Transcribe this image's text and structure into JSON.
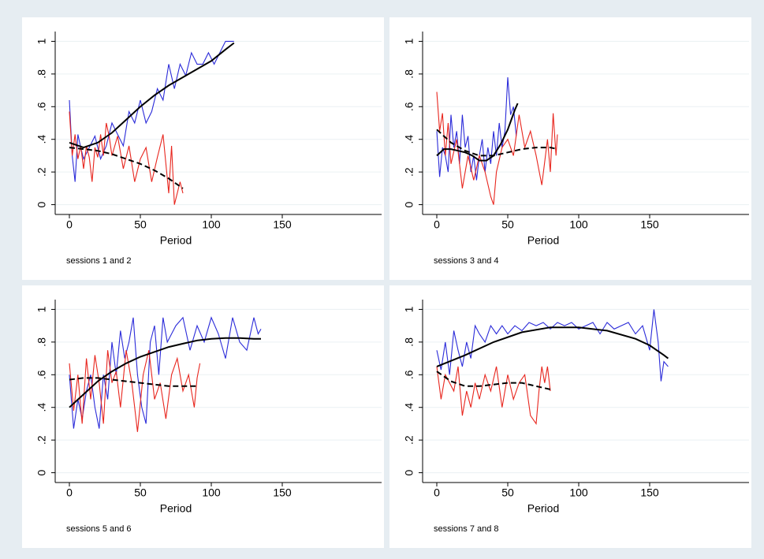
{
  "chart_data": [
    {
      "type": "line",
      "x_label": "Period",
      "note": "sessions 1 and 2",
      "xlim": [
        -10,
        220
      ],
      "ylim": [
        -0.06,
        1.06
      ],
      "xticks": [
        0,
        50,
        100,
        150
      ],
      "yticks": [
        0,
        {
          "value": 0.2,
          "label": ".2"
        },
        {
          "value": 0.4,
          "label": ".4"
        },
        {
          "value": 0.6,
          "label": ".6"
        },
        {
          "value": 0.8,
          "label": ".8"
        },
        1
      ],
      "grid": true,
      "series": [
        {
          "color": "#2b2bd9",
          "linestyle": "solid",
          "x": [
            0,
            2,
            4,
            6,
            8,
            10,
            14,
            18,
            22,
            26,
            30,
            34,
            38,
            42,
            46,
            50,
            54,
            58,
            62,
            66,
            70,
            74,
            78,
            82,
            86,
            90,
            94,
            98,
            102,
            106,
            110,
            114,
            116
          ],
          "values": [
            0.64,
            0.3,
            0.14,
            0.43,
            0.35,
            0.28,
            0.35,
            0.42,
            0.28,
            0.36,
            0.5,
            0.43,
            0.36,
            0.57,
            0.5,
            0.64,
            0.5,
            0.57,
            0.71,
            0.64,
            0.86,
            0.71,
            0.86,
            0.79,
            0.93,
            0.86,
            0.86,
            0.93,
            0.86,
            0.93,
            1,
            1,
            1
          ]
        },
        {
          "color": "#e8261e",
          "linestyle": "solid",
          "x": [
            0,
            2,
            4,
            6,
            8,
            10,
            12,
            14,
            16,
            18,
            20,
            22,
            24,
            26,
            28,
            30,
            34,
            38,
            42,
            46,
            50,
            54,
            58,
            62,
            66,
            70,
            72,
            74,
            76,
            78,
            80
          ],
          "values": [
            0.57,
            0.3,
            0.43,
            0.28,
            0.36,
            0.22,
            0.36,
            0.29,
            0.14,
            0.35,
            0.29,
            0.43,
            0.3,
            0.5,
            0.42,
            0.3,
            0.42,
            0.22,
            0.36,
            0.14,
            0.28,
            0.35,
            0.14,
            0.29,
            0.43,
            0.07,
            0.36,
            0,
            0.07,
            0.14,
            0.07
          ]
        },
        {
          "color": "#000000",
          "linestyle": "solid",
          "x": [
            0,
            10,
            20,
            30,
            40,
            50,
            60,
            70,
            80,
            90,
            100,
            110,
            116
          ],
          "values": [
            0.38,
            0.35,
            0.38,
            0.44,
            0.52,
            0.6,
            0.67,
            0.73,
            0.78,
            0.83,
            0.88,
            0.95,
            0.99
          ]
        },
        {
          "color": "#000000",
          "linestyle": "dashed",
          "x": [
            0,
            10,
            20,
            30,
            40,
            50,
            60,
            70,
            80
          ],
          "values": [
            0.35,
            0.34,
            0.33,
            0.31,
            0.28,
            0.25,
            0.21,
            0.16,
            0.1
          ]
        }
      ]
    },
    {
      "type": "line",
      "x_label": "Period",
      "note": "sessions 3 and 4",
      "xlim": [
        -10,
        220
      ],
      "ylim": [
        -0.06,
        1.06
      ],
      "xticks": [
        0,
        50,
        100,
        150
      ],
      "yticks": [
        0,
        {
          "value": 0.2,
          "label": ".2"
        },
        {
          "value": 0.4,
          "label": ".4"
        },
        {
          "value": 0.6,
          "label": ".6"
        },
        {
          "value": 0.8,
          "label": ".8"
        },
        1
      ],
      "grid": true,
      "series": [
        {
          "color": "#2b2bd9",
          "linestyle": "solid",
          "x": [
            0,
            2,
            4,
            6,
            8,
            10,
            12,
            14,
            16,
            18,
            20,
            22,
            24,
            26,
            28,
            30,
            32,
            34,
            36,
            38,
            40,
            42,
            44,
            46,
            48,
            50,
            52,
            54,
            56
          ],
          "values": [
            0.45,
            0.17,
            0.35,
            0.3,
            0.2,
            0.55,
            0.35,
            0.45,
            0.25,
            0.55,
            0.35,
            0.42,
            0.2,
            0.3,
            0.15,
            0.3,
            0.4,
            0.2,
            0.35,
            0.25,
            0.45,
            0.3,
            0.5,
            0.35,
            0.45,
            0.78,
            0.55,
            0.6,
            0.42
          ]
        },
        {
          "color": "#e8261e",
          "linestyle": "solid",
          "x": [
            0,
            2,
            4,
            6,
            8,
            10,
            14,
            18,
            22,
            26,
            30,
            34,
            38,
            40,
            42,
            46,
            50,
            54,
            58,
            62,
            66,
            70,
            74,
            78,
            80,
            82,
            84,
            85
          ],
          "values": [
            0.69,
            0.45,
            0.56,
            0.3,
            0.5,
            0.25,
            0.4,
            0.1,
            0.3,
            0.15,
            0.3,
            0.2,
            0.05,
            0,
            0.2,
            0.35,
            0.4,
            0.3,
            0.55,
            0.35,
            0.45,
            0.3,
            0.12,
            0.4,
            0.2,
            0.56,
            0.3,
            0.43
          ]
        },
        {
          "color": "#000000",
          "linestyle": "solid",
          "x": [
            0,
            5,
            10,
            15,
            20,
            25,
            30,
            35,
            40,
            45,
            50,
            55,
            57
          ],
          "values": [
            0.3,
            0.34,
            0.34,
            0.33,
            0.32,
            0.3,
            0.27,
            0.27,
            0.3,
            0.37,
            0.46,
            0.58,
            0.62
          ]
        },
        {
          "color": "#000000",
          "linestyle": "dashed",
          "x": [
            0,
            10,
            20,
            30,
            40,
            50,
            60,
            70,
            80,
            85
          ],
          "values": [
            0.46,
            0.38,
            0.33,
            0.3,
            0.3,
            0.32,
            0.34,
            0.35,
            0.35,
            0.34
          ]
        }
      ]
    },
    {
      "type": "line",
      "x_label": "Period",
      "note": "sessions 5 and 6",
      "xlim": [
        -10,
        220
      ],
      "ylim": [
        -0.06,
        1.06
      ],
      "xticks": [
        0,
        50,
        100,
        150
      ],
      "yticks": [
        0,
        {
          "value": 0.2,
          "label": ".2"
        },
        {
          "value": 0.4,
          "label": ".4"
        },
        {
          "value": 0.6,
          "label": ".6"
        },
        {
          "value": 0.8,
          "label": ".8"
        },
        1
      ],
      "grid": true,
      "series": [
        {
          "color": "#2b2bd9",
          "linestyle": "solid",
          "x": [
            0,
            3,
            6,
            9,
            12,
            15,
            18,
            21,
            24,
            27,
            30,
            33,
            36,
            39,
            42,
            45,
            48,
            51,
            54,
            57,
            60,
            63,
            66,
            69,
            72,
            75,
            80,
            85,
            90,
            95,
            100,
            105,
            110,
            115,
            120,
            125,
            130,
            133,
            135
          ],
          "values": [
            0.6,
            0.27,
            0.45,
            0.33,
            0.5,
            0.6,
            0.4,
            0.27,
            0.6,
            0.45,
            0.8,
            0.6,
            0.87,
            0.7,
            0.8,
            0.95,
            0.6,
            0.4,
            0.3,
            0.8,
            0.9,
            0.6,
            0.95,
            0.8,
            0.85,
            0.9,
            0.95,
            0.75,
            0.9,
            0.8,
            0.95,
            0.85,
            0.7,
            0.95,
            0.8,
            0.75,
            0.95,
            0.85,
            0.88
          ]
        },
        {
          "color": "#e8261e",
          "linestyle": "solid",
          "x": [
            0,
            3,
            6,
            9,
            12,
            15,
            18,
            21,
            24,
            27,
            30,
            33,
            36,
            40,
            44,
            48,
            52,
            56,
            60,
            64,
            68,
            72,
            76,
            80,
            84,
            88,
            90,
            92
          ],
          "values": [
            0.67,
            0.38,
            0.6,
            0.3,
            0.7,
            0.45,
            0.72,
            0.55,
            0.3,
            0.75,
            0.55,
            0.62,
            0.4,
            0.75,
            0.55,
            0.25,
            0.6,
            0.75,
            0.45,
            0.55,
            0.33,
            0.6,
            0.7,
            0.5,
            0.6,
            0.4,
            0.58,
            0.67
          ]
        },
        {
          "color": "#000000",
          "linestyle": "solid",
          "x": [
            0,
            10,
            20,
            30,
            40,
            50,
            60,
            70,
            80,
            90,
            100,
            110,
            120,
            130,
            135
          ],
          "values": [
            0.4,
            0.48,
            0.56,
            0.62,
            0.67,
            0.71,
            0.74,
            0.77,
            0.79,
            0.81,
            0.82,
            0.825,
            0.825,
            0.82,
            0.82
          ]
        },
        {
          "color": "#000000",
          "linestyle": "dashed",
          "x": [
            0,
            10,
            20,
            30,
            40,
            50,
            60,
            70,
            80,
            90
          ],
          "values": [
            0.57,
            0.58,
            0.58,
            0.57,
            0.56,
            0.55,
            0.54,
            0.53,
            0.53,
            0.53
          ]
        }
      ]
    },
    {
      "type": "line",
      "x_label": "Period",
      "note": "sessions 7 and 8",
      "xlim": [
        -10,
        220
      ],
      "ylim": [
        -0.06,
        1.06
      ],
      "xticks": [
        0,
        50,
        100,
        150
      ],
      "yticks": [
        0,
        {
          "value": 0.2,
          "label": ".2"
        },
        {
          "value": 0.4,
          "label": ".4"
        },
        {
          "value": 0.6,
          "label": ".6"
        },
        {
          "value": 0.8,
          "label": ".8"
        },
        1
      ],
      "grid": true,
      "series": [
        {
          "color": "#2b2bd9",
          "linestyle": "solid",
          "x": [
            0,
            3,
            6,
            9,
            12,
            15,
            18,
            21,
            24,
            27,
            30,
            34,
            38,
            42,
            46,
            50,
            55,
            60,
            65,
            70,
            75,
            80,
            85,
            90,
            95,
            100,
            105,
            110,
            115,
            120,
            125,
            130,
            135,
            140,
            145,
            150,
            153,
            156,
            158,
            160,
            163
          ],
          "values": [
            0.75,
            0.63,
            0.8,
            0.6,
            0.87,
            0.75,
            0.65,
            0.8,
            0.7,
            0.9,
            0.85,
            0.8,
            0.9,
            0.85,
            0.9,
            0.85,
            0.9,
            0.87,
            0.92,
            0.9,
            0.92,
            0.88,
            0.92,
            0.9,
            0.92,
            0.88,
            0.9,
            0.92,
            0.85,
            0.92,
            0.88,
            0.9,
            0.92,
            0.85,
            0.9,
            0.75,
            1,
            0.8,
            0.56,
            0.68,
            0.65
          ]
        },
        {
          "color": "#e8261e",
          "linestyle": "solid",
          "x": [
            0,
            3,
            6,
            9,
            12,
            15,
            18,
            21,
            24,
            27,
            30,
            34,
            38,
            42,
            46,
            50,
            54,
            58,
            62,
            66,
            70,
            72,
            74,
            76,
            78,
            80
          ],
          "values": [
            0.65,
            0.45,
            0.6,
            0.55,
            0.5,
            0.65,
            0.35,
            0.5,
            0.4,
            0.55,
            0.45,
            0.6,
            0.5,
            0.65,
            0.4,
            0.6,
            0.45,
            0.55,
            0.6,
            0.35,
            0.3,
            0.5,
            0.65,
            0.55,
            0.65,
            0.5
          ]
        },
        {
          "color": "#000000",
          "linestyle": "solid",
          "x": [
            0,
            20,
            40,
            60,
            80,
            100,
            120,
            140,
            150,
            160,
            163
          ],
          "values": [
            0.65,
            0.72,
            0.8,
            0.86,
            0.89,
            0.89,
            0.87,
            0.82,
            0.78,
            0.72,
            0.7
          ]
        },
        {
          "color": "#000000",
          "linestyle": "dashed",
          "x": [
            0,
            10,
            20,
            30,
            40,
            50,
            60,
            70,
            80
          ],
          "values": [
            0.62,
            0.56,
            0.53,
            0.53,
            0.54,
            0.55,
            0.55,
            0.53,
            0.51
          ]
        }
      ]
    }
  ]
}
